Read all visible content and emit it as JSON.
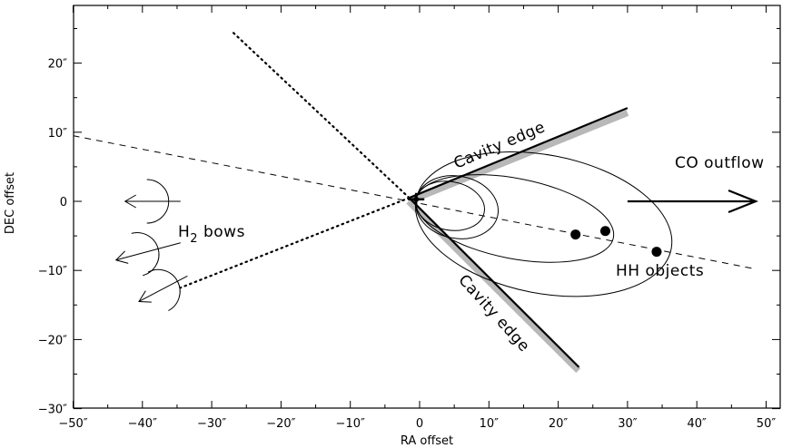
{
  "chart_data": {
    "type": "diagram",
    "xlabel": "RA offset",
    "ylabel": "DEC offset",
    "xlim": [
      -50,
      50
    ],
    "ylim": [
      -30,
      29
    ],
    "xticks": [
      -50,
      -40,
      -30,
      -20,
      -10,
      0,
      10,
      20,
      30,
      40,
      50
    ],
    "yticks": [
      -30,
      -20,
      -10,
      0,
      10,
      20
    ],
    "xtick_labels": [
      "−50″",
      "−40″",
      "−30″",
      "−20″",
      "−10″",
      "0",
      "10″",
      "20″",
      "30″",
      "40″",
      "50″"
    ],
    "ytick_labels": [
      "−30″",
      "−20″",
      "−10″",
      "0",
      "10″",
      "20″"
    ],
    "source": [
      -0.5,
      0.3
    ],
    "cavity_upper": {
      "from": [
        -1.5,
        0.5
      ],
      "to": [
        30,
        13.5
      ]
    },
    "cavity_lower": {
      "from": [
        -1.5,
        0.5
      ],
      "to": [
        23,
        -24
      ]
    },
    "axis_line": {
      "from": [
        -50,
        9.5
      ],
      "to": [
        48,
        -9.7
      ]
    },
    "dotted_upper": {
      "from": [
        -1.5,
        0.5
      ],
      "to": [
        -27,
        24.5
      ]
    },
    "dotted_lower": {
      "from": [
        -1.5,
        0.5
      ],
      "to": [
        -34.5,
        -12.5
      ]
    },
    "loops": [
      {
        "left": -0.5,
        "right": 9.5,
        "half_height": 3.5
      },
      {
        "left": -0.5,
        "right": 11.5,
        "half_height": 4.5
      },
      {
        "left": -0.5,
        "right": 28.5,
        "half_height": 5.8
      },
      {
        "left": -0.5,
        "right": 37.0,
        "half_height": 10.0
      }
    ],
    "hh_objects": [
      {
        "x": 22.5,
        "y": -4.8
      },
      {
        "x": 26.8,
        "y": -4.3
      },
      {
        "x": 34.2,
        "y": -7.3
      }
    ],
    "bows": [
      {
        "apex": [
          -42.5,
          0
        ],
        "tail": [
          -34.5,
          0
        ]
      },
      {
        "apex": [
          -43.8,
          -8.5
        ],
        "tail": [
          -34.5,
          -6.0
        ]
      },
      {
        "apex": [
          -40.5,
          -14.5
        ],
        "tail": [
          -33.5,
          -10.8
        ]
      }
    ],
    "co_arrow": {
      "from": [
        30,
        0
      ],
      "to": [
        48.5,
        0
      ]
    },
    "labels": {
      "cavity_top": "Cavity edge",
      "cavity_bottom": "Cavity edge",
      "co_outflow": "CO outflow",
      "h2_prefix": "H",
      "h2_sub": "2",
      "h2_suffix": " bows",
      "hh_objects": "HH objects"
    }
  }
}
